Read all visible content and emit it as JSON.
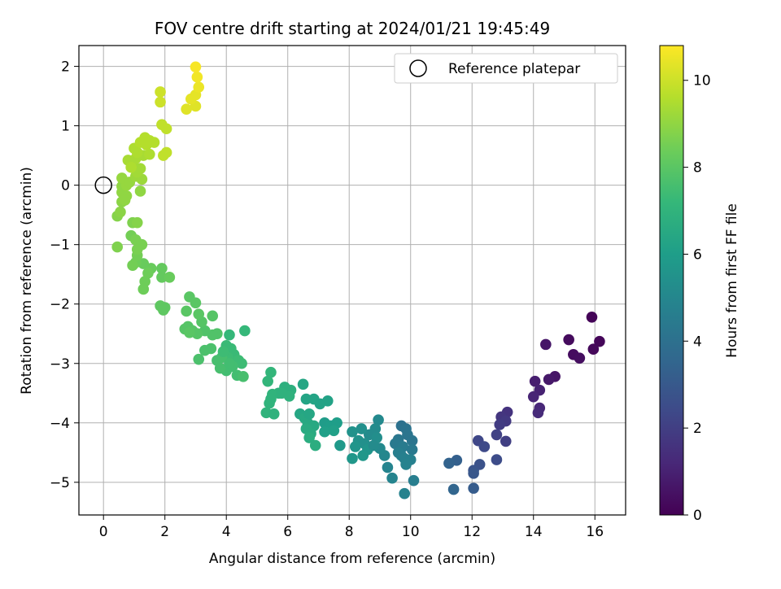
{
  "chart_data": {
    "type": "scatter",
    "title": "FOV centre drift starting at 2024/01/21 19:45:49",
    "xlabel": "Angular distance from reference (arcmin)",
    "ylabel": "Rotation from reference (arcmin)",
    "xlim": [
      -0.8,
      17.0
    ],
    "ylim": [
      -5.55,
      2.35
    ],
    "xticks": [
      0,
      2,
      4,
      6,
      8,
      10,
      12,
      14,
      16
    ],
    "yticks": [
      2,
      1,
      0,
      -1,
      -2,
      -3,
      -4,
      -5
    ],
    "grid": true,
    "legend": {
      "position": "top-right",
      "entries": [
        {
          "label": "Reference platepar",
          "marker": "open-circle",
          "x": 0,
          "y": 0
        }
      ]
    },
    "colorbar": {
      "label": "Hours from first FF file",
      "colormap": "viridis",
      "range": [
        0,
        10.8
      ],
      "ticks": [
        0,
        2,
        4,
        6,
        8,
        10
      ]
    },
    "points": [
      {
        "x": 15.9,
        "y": -2.22,
        "c": 0.1
      },
      {
        "x": 16.15,
        "y": -2.63,
        "c": 0.15
      },
      {
        "x": 15.95,
        "y": -2.76,
        "c": 0.2
      },
      {
        "x": 15.15,
        "y": -2.6,
        "c": 0.3
      },
      {
        "x": 15.3,
        "y": -2.85,
        "c": 0.35
      },
      {
        "x": 15.5,
        "y": -2.91,
        "c": 0.4
      },
      {
        "x": 14.7,
        "y": -3.22,
        "c": 0.6
      },
      {
        "x": 14.5,
        "y": -3.27,
        "c": 0.7
      },
      {
        "x": 14.4,
        "y": -2.68,
        "c": 0.65
      },
      {
        "x": 14.05,
        "y": -3.3,
        "c": 0.9
      },
      {
        "x": 14.2,
        "y": -3.45,
        "c": 1.0
      },
      {
        "x": 14.0,
        "y": -3.56,
        "c": 1.1
      },
      {
        "x": 14.2,
        "y": -3.75,
        "c": 1.2
      },
      {
        "x": 14.15,
        "y": -3.83,
        "c": 1.3
      },
      {
        "x": 13.15,
        "y": -3.82,
        "c": 1.6
      },
      {
        "x": 12.95,
        "y": -3.9,
        "c": 1.7
      },
      {
        "x": 13.1,
        "y": -3.97,
        "c": 1.8
      },
      {
        "x": 12.9,
        "y": -4.03,
        "c": 1.9
      },
      {
        "x": 12.8,
        "y": -4.2,
        "c": 2.1
      },
      {
        "x": 13.1,
        "y": -4.31,
        "c": 2.0
      },
      {
        "x": 12.2,
        "y": -4.3,
        "c": 2.3
      },
      {
        "x": 12.4,
        "y": -4.4,
        "c": 2.4
      },
      {
        "x": 12.8,
        "y": -4.62,
        "c": 2.5
      },
      {
        "x": 12.25,
        "y": -4.7,
        "c": 2.7
      },
      {
        "x": 12.05,
        "y": -4.8,
        "c": 2.8
      },
      {
        "x": 12.05,
        "y": -4.85,
        "c": 2.9
      },
      {
        "x": 12.05,
        "y": -5.1,
        "c": 3.1
      },
      {
        "x": 11.5,
        "y": -4.63,
        "c": 3.3
      },
      {
        "x": 11.25,
        "y": -4.68,
        "c": 3.4
      },
      {
        "x": 11.4,
        "y": -5.12,
        "c": 3.5
      },
      {
        "x": 9.7,
        "y": -4.05,
        "c": 4.0
      },
      {
        "x": 9.85,
        "y": -4.1,
        "c": 4.1
      },
      {
        "x": 9.9,
        "y": -4.2,
        "c": 4.2
      },
      {
        "x": 10.05,
        "y": -4.3,
        "c": 4.2
      },
      {
        "x": 9.6,
        "y": -4.28,
        "c": 4.3
      },
      {
        "x": 9.5,
        "y": -4.35,
        "c": 4.4
      },
      {
        "x": 9.75,
        "y": -4.4,
        "c": 4.5
      },
      {
        "x": 10.05,
        "y": -4.45,
        "c": 4.4
      },
      {
        "x": 9.6,
        "y": -4.5,
        "c": 4.6
      },
      {
        "x": 9.7,
        "y": -4.55,
        "c": 4.6
      },
      {
        "x": 9.8,
        "y": -4.6,
        "c": 4.7
      },
      {
        "x": 10.0,
        "y": -4.62,
        "c": 4.7
      },
      {
        "x": 9.85,
        "y": -4.7,
        "c": 4.8
      },
      {
        "x": 9.25,
        "y": -4.75,
        "c": 4.9
      },
      {
        "x": 9.4,
        "y": -4.93,
        "c": 4.9
      },
      {
        "x": 10.1,
        "y": -4.97,
        "c": 4.6
      },
      {
        "x": 9.8,
        "y": -5.19,
        "c": 4.8
      },
      {
        "x": 8.95,
        "y": -3.95,
        "c": 5.1
      },
      {
        "x": 8.85,
        "y": -4.1,
        "c": 5.2
      },
      {
        "x": 8.65,
        "y": -4.2,
        "c": 5.2
      },
      {
        "x": 8.9,
        "y": -4.25,
        "c": 5.3
      },
      {
        "x": 8.4,
        "y": -4.1,
        "c": 5.4
      },
      {
        "x": 8.1,
        "y": -4.15,
        "c": 5.5
      },
      {
        "x": 8.3,
        "y": -4.3,
        "c": 5.5
      },
      {
        "x": 8.5,
        "y": -4.35,
        "c": 5.4
      },
      {
        "x": 8.2,
        "y": -4.4,
        "c": 5.6
      },
      {
        "x": 8.6,
        "y": -4.45,
        "c": 5.6
      },
      {
        "x": 8.45,
        "y": -4.55,
        "c": 5.7
      },
      {
        "x": 9.15,
        "y": -4.55,
        "c": 5.0
      },
      {
        "x": 9.0,
        "y": -4.43,
        "c": 5.1
      },
      {
        "x": 8.8,
        "y": -4.38,
        "c": 5.2
      },
      {
        "x": 8.1,
        "y": -4.6,
        "c": 5.7
      },
      {
        "x": 7.7,
        "y": -4.38,
        "c": 5.8
      },
      {
        "x": 7.2,
        "y": -4.0,
        "c": 5.9
      },
      {
        "x": 7.4,
        "y": -4.05,
        "c": 6.0
      },
      {
        "x": 7.6,
        "y": -4.0,
        "c": 6.0
      },
      {
        "x": 7.5,
        "y": -4.13,
        "c": 6.1
      },
      {
        "x": 7.2,
        "y": -4.15,
        "c": 6.1
      },
      {
        "x": 7.3,
        "y": -3.63,
        "c": 6.2
      },
      {
        "x": 6.85,
        "y": -3.6,
        "c": 6.3
      },
      {
        "x": 6.6,
        "y": -3.6,
        "c": 6.3
      },
      {
        "x": 6.5,
        "y": -3.35,
        "c": 6.4
      },
      {
        "x": 7.05,
        "y": -3.68,
        "c": 6.2
      },
      {
        "x": 6.4,
        "y": -3.85,
        "c": 6.4
      },
      {
        "x": 6.55,
        "y": -3.92,
        "c": 6.5
      },
      {
        "x": 6.65,
        "y": -4.0,
        "c": 6.5
      },
      {
        "x": 6.85,
        "y": -4.05,
        "c": 6.5
      },
      {
        "x": 6.6,
        "y": -4.1,
        "c": 6.6
      },
      {
        "x": 6.75,
        "y": -4.18,
        "c": 6.6
      },
      {
        "x": 6.7,
        "y": -4.25,
        "c": 6.7
      },
      {
        "x": 6.9,
        "y": -4.38,
        "c": 6.7
      },
      {
        "x": 6.7,
        "y": -3.85,
        "c": 6.4
      },
      {
        "x": 5.9,
        "y": -3.4,
        "c": 6.8
      },
      {
        "x": 6.1,
        "y": -3.45,
        "c": 6.8
      },
      {
        "x": 6.05,
        "y": -3.55,
        "c": 6.9
      },
      {
        "x": 5.7,
        "y": -3.5,
        "c": 6.9
      },
      {
        "x": 5.5,
        "y": -3.52,
        "c": 7.0
      },
      {
        "x": 5.45,
        "y": -3.6,
        "c": 7.0
      },
      {
        "x": 5.4,
        "y": -3.67,
        "c": 7.0
      },
      {
        "x": 5.35,
        "y": -3.3,
        "c": 7.1
      },
      {
        "x": 5.45,
        "y": -3.15,
        "c": 7.1
      },
      {
        "x": 5.3,
        "y": -3.83,
        "c": 7.0
      },
      {
        "x": 5.55,
        "y": -3.85,
        "c": 6.9
      },
      {
        "x": 5.8,
        "y": -3.5,
        "c": 6.9
      },
      {
        "x": 4.1,
        "y": -2.52,
        "c": 7.2
      },
      {
        "x": 4.0,
        "y": -2.7,
        "c": 7.3
      },
      {
        "x": 4.15,
        "y": -2.75,
        "c": 7.3
      },
      {
        "x": 4.25,
        "y": -2.85,
        "c": 7.3
      },
      {
        "x": 4.05,
        "y": -2.9,
        "c": 7.4
      },
      {
        "x": 4.4,
        "y": -2.95,
        "c": 7.4
      },
      {
        "x": 4.5,
        "y": -3.0,
        "c": 7.4
      },
      {
        "x": 4.2,
        "y": -3.05,
        "c": 7.5
      },
      {
        "x": 4.0,
        "y": -3.12,
        "c": 7.5
      },
      {
        "x": 4.35,
        "y": -3.2,
        "c": 7.5
      },
      {
        "x": 4.55,
        "y": -3.22,
        "c": 7.6
      },
      {
        "x": 4.6,
        "y": -2.45,
        "c": 7.2
      },
      {
        "x": 3.85,
        "y": -2.9,
        "c": 7.6
      },
      {
        "x": 3.7,
        "y": -2.95,
        "c": 7.6
      },
      {
        "x": 3.8,
        "y": -3.08,
        "c": 7.6
      },
      {
        "x": 4.1,
        "y": -3.0,
        "c": 7.5
      },
      {
        "x": 3.9,
        "y": -2.8,
        "c": 7.4
      },
      {
        "x": 3.5,
        "y": -2.75,
        "c": 7.7
      },
      {
        "x": 3.3,
        "y": -2.78,
        "c": 7.7
      },
      {
        "x": 3.1,
        "y": -2.93,
        "c": 7.7
      },
      {
        "x": 3.7,
        "y": -2.5,
        "c": 7.8
      },
      {
        "x": 3.55,
        "y": -2.52,
        "c": 7.8
      },
      {
        "x": 3.3,
        "y": -2.45,
        "c": 7.8
      },
      {
        "x": 3.05,
        "y": -2.5,
        "c": 7.9
      },
      {
        "x": 2.9,
        "y": -2.45,
        "c": 7.9
      },
      {
        "x": 2.75,
        "y": -2.38,
        "c": 7.9
      },
      {
        "x": 2.65,
        "y": -2.42,
        "c": 7.9
      },
      {
        "x": 2.8,
        "y": -2.48,
        "c": 8.0
      },
      {
        "x": 3.2,
        "y": -2.3,
        "c": 7.9
      },
      {
        "x": 3.55,
        "y": -2.2,
        "c": 7.9
      },
      {
        "x": 2.8,
        "y": -1.88,
        "c": 8.0
      },
      {
        "x": 3.0,
        "y": -1.98,
        "c": 8.0
      },
      {
        "x": 3.1,
        "y": -2.17,
        "c": 8.0
      },
      {
        "x": 2.7,
        "y": -2.12,
        "c": 8.0
      },
      {
        "x": 2.0,
        "y": -2.06,
        "c": 8.1
      },
      {
        "x": 1.85,
        "y": -2.03,
        "c": 8.1
      },
      {
        "x": 1.95,
        "y": -2.1,
        "c": 8.1
      },
      {
        "x": 1.9,
        "y": -1.4,
        "c": 8.2
      },
      {
        "x": 1.9,
        "y": -1.55,
        "c": 8.2
      },
      {
        "x": 2.15,
        "y": -1.55,
        "c": 8.3
      },
      {
        "x": 1.55,
        "y": -1.4,
        "c": 8.3
      },
      {
        "x": 1.3,
        "y": -1.32,
        "c": 8.3
      },
      {
        "x": 1.45,
        "y": -1.48,
        "c": 8.4
      },
      {
        "x": 1.35,
        "y": -1.62,
        "c": 8.4
      },
      {
        "x": 1.3,
        "y": -1.75,
        "c": 8.4
      },
      {
        "x": 1.05,
        "y": -1.3,
        "c": 8.4
      },
      {
        "x": 0.95,
        "y": -1.35,
        "c": 8.5
      },
      {
        "x": 1.1,
        "y": -1.18,
        "c": 8.5
      },
      {
        "x": 0.9,
        "y": -0.85,
        "c": 8.5
      },
      {
        "x": 1.05,
        "y": -0.92,
        "c": 8.6
      },
      {
        "x": 1.25,
        "y": -1.0,
        "c": 8.6
      },
      {
        "x": 1.1,
        "y": -1.08,
        "c": 8.6
      },
      {
        "x": 0.45,
        "y": -1.04,
        "c": 8.7
      },
      {
        "x": 0.95,
        "y": -0.63,
        "c": 8.7
      },
      {
        "x": 1.1,
        "y": -0.63,
        "c": 8.8
      },
      {
        "x": 0.45,
        "y": -0.52,
        "c": 8.8
      },
      {
        "x": 0.55,
        "y": -0.45,
        "c": 8.9
      },
      {
        "x": 0.6,
        "y": -0.28,
        "c": 8.9
      },
      {
        "x": 0.6,
        "y": -0.12,
        "c": 9.0
      },
      {
        "x": 0.75,
        "y": -0.18,
        "c": 9.0
      },
      {
        "x": 0.6,
        "y": -0.02,
        "c": 9.0
      },
      {
        "x": 0.75,
        "y": 0.0,
        "c": 9.1
      },
      {
        "x": 0.6,
        "y": 0.12,
        "c": 9.1
      },
      {
        "x": 0.85,
        "y": 0.05,
        "c": 9.1
      },
      {
        "x": 1.2,
        "y": -0.1,
        "c": 9.0
      },
      {
        "x": 0.7,
        "y": -0.25,
        "c": 9.0
      },
      {
        "x": 1.05,
        "y": 0.15,
        "c": 9.2
      },
      {
        "x": 1.25,
        "y": 0.1,
        "c": 9.2
      },
      {
        "x": 1.1,
        "y": 0.22,
        "c": 9.3
      },
      {
        "x": 1.2,
        "y": 0.28,
        "c": 9.3
      },
      {
        "x": 0.95,
        "y": 0.35,
        "c": 9.3
      },
      {
        "x": 0.8,
        "y": 0.42,
        "c": 9.4
      },
      {
        "x": 1.05,
        "y": 0.45,
        "c": 9.4
      },
      {
        "x": 1.3,
        "y": 0.5,
        "c": 9.4
      },
      {
        "x": 1.5,
        "y": 0.52,
        "c": 9.5
      },
      {
        "x": 1.1,
        "y": 0.55,
        "c": 9.5
      },
      {
        "x": 0.9,
        "y": 0.3,
        "c": 9.5
      },
      {
        "x": 1.0,
        "y": 0.62,
        "c": 9.5
      },
      {
        "x": 1.2,
        "y": 0.72,
        "c": 9.6
      },
      {
        "x": 1.35,
        "y": 0.8,
        "c": 9.6
      },
      {
        "x": 1.5,
        "y": 0.75,
        "c": 9.6
      },
      {
        "x": 1.65,
        "y": 0.72,
        "c": 9.6
      },
      {
        "x": 1.4,
        "y": 0.68,
        "c": 9.6
      },
      {
        "x": 1.9,
        "y": 1.02,
        "c": 9.8
      },
      {
        "x": 2.05,
        "y": 0.95,
        "c": 9.8
      },
      {
        "x": 2.05,
        "y": 0.55,
        "c": 9.8
      },
      {
        "x": 1.95,
        "y": 0.5,
        "c": 9.8
      },
      {
        "x": 1.85,
        "y": 1.57,
        "c": 10.0
      },
      {
        "x": 1.85,
        "y": 1.4,
        "c": 10.0
      },
      {
        "x": 2.7,
        "y": 1.28,
        "c": 10.3
      },
      {
        "x": 3.0,
        "y": 1.33,
        "c": 10.3
      },
      {
        "x": 2.85,
        "y": 1.45,
        "c": 10.4
      },
      {
        "x": 3.0,
        "y": 1.52,
        "c": 10.4
      },
      {
        "x": 3.1,
        "y": 1.65,
        "c": 10.5
      },
      {
        "x": 3.05,
        "y": 1.82,
        "c": 10.6
      },
      {
        "x": 3.0,
        "y": 1.99,
        "c": 10.7
      }
    ]
  }
}
